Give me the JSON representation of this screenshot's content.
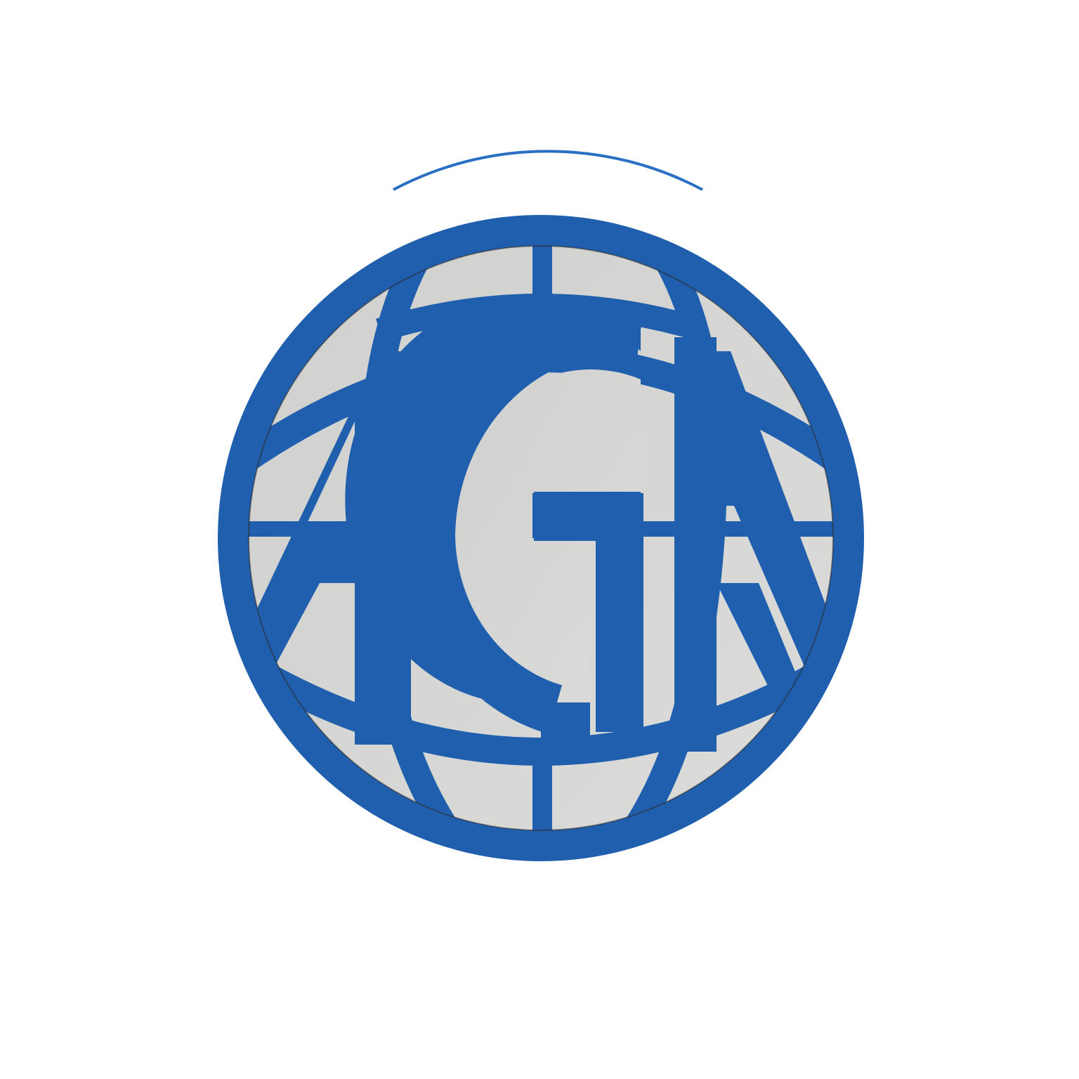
{
  "logo": {
    "name": "AGI",
    "letters": [
      "A",
      "G",
      "I"
    ],
    "style": "laser-cut globe emblem with monogram",
    "colors": {
      "emblem_blue": "#1f5fae",
      "emblem_blue_dark": "#174d93",
      "backing_gray": "#d6d6d4",
      "shadow_line": "#2a2a2a",
      "background": "#ffffff"
    }
  }
}
